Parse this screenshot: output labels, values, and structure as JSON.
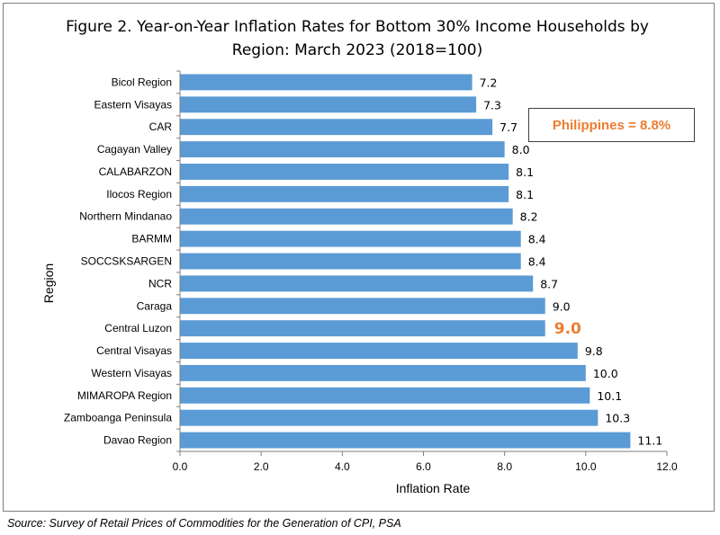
{
  "title_line1": "Figure 2. Year-on-Year Inflation Rates for Bottom 30% Income Households by",
  "title_line2": "Region: March 2023 (2018=100)",
  "callout": "Philippines = 8.8%",
  "source": "Source: Survey of Retail Prices of Commodities for the Generation of CPI, PSA",
  "colors": {
    "bar": "#5b9bd5",
    "highlight": "#ed7d31"
  },
  "chart_data": {
    "type": "bar",
    "orientation": "horizontal",
    "title": "Figure 2. Year-on-Year Inflation Rates for Bottom 30% Income Households by Region: March 2023 (2018=100)",
    "xlabel": "Inflation Rate",
    "ylabel": "Region",
    "xlim": [
      0,
      12
    ],
    "x_ticks": [
      "0.0",
      "2.0",
      "4.0",
      "6.0",
      "8.0",
      "10.0",
      "12.0"
    ],
    "categories": [
      "Bicol Region",
      "Eastern Visayas",
      "CAR",
      "Cagayan Valley",
      "CALABARZON",
      "Ilocos Region",
      "Northern Mindanao",
      "BARMM",
      "SOCCSKSARGEN",
      "NCR",
      "Caraga",
      "Central Luzon",
      "Central Visayas",
      "Western Visayas",
      "MIMAROPA Region",
      "Zamboanga Peninsula",
      "Davao Region"
    ],
    "values": [
      7.2,
      7.3,
      7.7,
      8.0,
      8.1,
      8.1,
      8.2,
      8.4,
      8.4,
      8.7,
      9.0,
      9.0,
      9.8,
      10.0,
      10.1,
      10.3,
      11.1
    ],
    "value_labels": [
      "7.2",
      "7.3",
      "7.7",
      "8.0",
      "8.1",
      "8.1",
      "8.2",
      "8.4",
      "8.4",
      "8.7",
      "9.0",
      "9.0",
      "9.8",
      "10.0",
      "10.1",
      "10.3",
      "11.1"
    ],
    "highlight_category": "Central Luzon",
    "grid": false,
    "legend": "none",
    "annotation": "Philippines = 8.8%"
  }
}
